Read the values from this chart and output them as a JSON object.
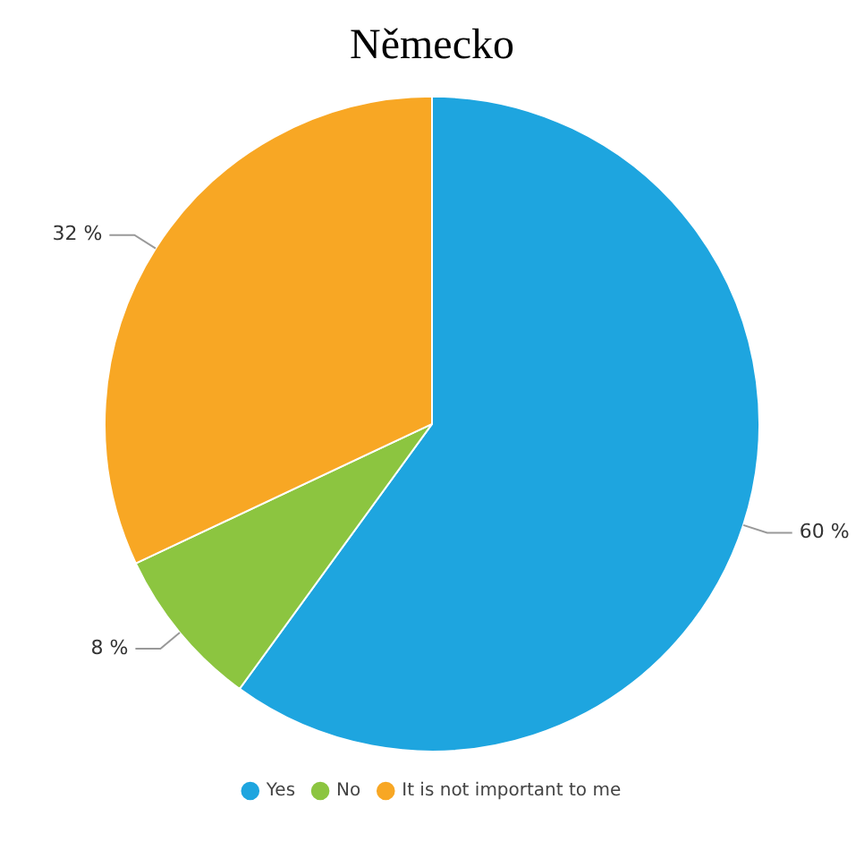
{
  "chart_data": {
    "type": "pie",
    "title": "Německo",
    "categories": [
      "Yes",
      "No",
      "It is not important to me"
    ],
    "values": [
      60,
      8,
      32
    ],
    "colors": [
      "#1ea5df",
      "#8cc540",
      "#f8a724"
    ],
    "value_labels": [
      "60 %",
      "8 %",
      "32 %"
    ],
    "legend": "bottom"
  }
}
